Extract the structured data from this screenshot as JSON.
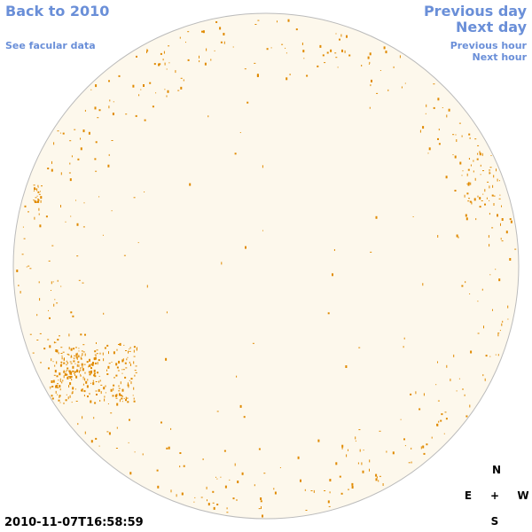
{
  "nav": {
    "back_year": "Back to 2010",
    "facular_data": "See facular data",
    "previous_day": "Previous day",
    "next_day": "Next day",
    "previous_hour": "Previous hour",
    "next_hour": "Next hour"
  },
  "timestamp": "2010-11-07T16:58:59",
  "compass": {
    "north": "N",
    "east": "E",
    "center": "+",
    "west": "W",
    "south": "S"
  }
}
